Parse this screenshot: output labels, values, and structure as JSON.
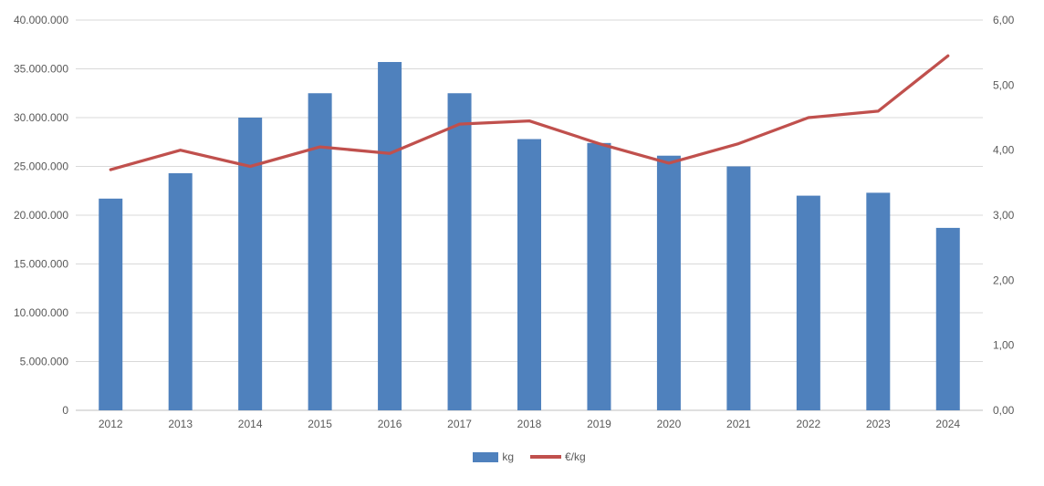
{
  "chart": {
    "background": "#FFFFFF",
    "bar_color": "#4F81BD",
    "line_color": "#C0504D",
    "gridline_color": "#D9D9D9",
    "axis_line_color": "#BFBFBF",
    "text_color": "#595959",
    "legend": {
      "bar_label": "kg",
      "line_label": "€/kg"
    }
  },
  "chart_data": {
    "type": "bar+line combo",
    "title": "",
    "xlabel": "",
    "ylabel_left": "",
    "ylabel_right": "",
    "grid": true,
    "legend_position": "bottom",
    "categories": [
      "2012",
      "2013",
      "2014",
      "2015",
      "2016",
      "2017",
      "2018",
      "2019",
      "2020",
      "2021",
      "2022",
      "2023",
      "2024"
    ],
    "series": [
      {
        "name": "kg",
        "type": "bar",
        "axis": "left",
        "color": "#4F81BD",
        "values": [
          21700000,
          24300000,
          30000000,
          32500000,
          35700000,
          32500000,
          27800000,
          27400000,
          26100000,
          25000000,
          22000000,
          22300000,
          18700000
        ]
      },
      {
        "name": "€/kg",
        "type": "line",
        "axis": "right",
        "color": "#C0504D",
        "values": [
          3.7,
          4.0,
          3.75,
          4.05,
          3.95,
          4.4,
          4.45,
          4.1,
          3.8,
          4.1,
          4.5,
          4.6,
          5.45
        ]
      }
    ],
    "left_axis": {
      "min": 0,
      "max": 40000000,
      "step": 5000000,
      "tick_labels": [
        "0",
        "5.000.000",
        "10.000.000",
        "15.000.000",
        "20.000.000",
        "25.000.000",
        "30.000.000",
        "35.000.000",
        "40.000.000"
      ]
    },
    "right_axis": {
      "min": 0,
      "max": 6,
      "step": 1,
      "tick_labels": [
        "0,00",
        "1,00",
        "2,00",
        "3,00",
        "4,00",
        "5,00",
        "6,00"
      ]
    }
  }
}
